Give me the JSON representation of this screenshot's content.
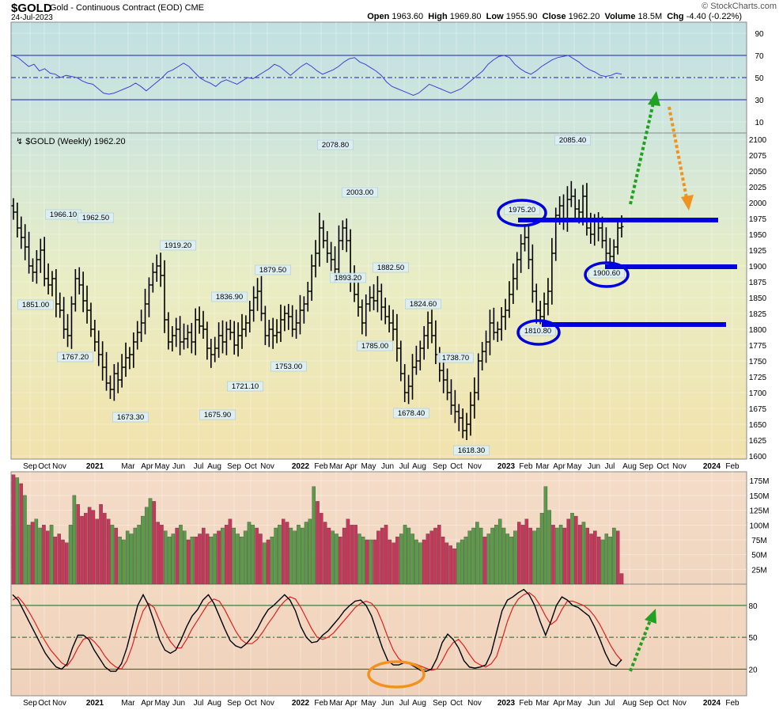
{
  "header": {
    "symbol": "$GOLD",
    "description": "Gold - Continuous Contract (EOD)",
    "exchange": "CME",
    "date": "24-Jul-2023",
    "brand": "© StockCharts.com",
    "quote": {
      "open_label": "Open",
      "open": "1963.60",
      "high_label": "High",
      "high": "1969.80",
      "low_label": "Low",
      "low": "1955.90",
      "close_label": "Close",
      "close": "1962.20",
      "volume_label": "Volume",
      "volume": "18.5M",
      "chg_label": "Chg",
      "chg": "-4.40 (-0.22%)"
    }
  },
  "colors": {
    "up_volume": "#5a9a48",
    "down_volume": "#c8365a",
    "price_bars": "#000000",
    "annotation_blue": "#0000dd",
    "arrow_green": "#22a022",
    "arrow_orange": "#f0921e",
    "rsi_line": "#4040d0",
    "stoch_k": "#000000",
    "stoch_d": "#e02020"
  },
  "chart_data": [
    {
      "type": "line",
      "panel": "rsi",
      "yticks": [
        "90",
        "70",
        "50",
        "30",
        "10"
      ],
      "ylim": [
        0,
        100
      ],
      "levels": [
        70,
        50,
        30
      ],
      "series": [
        {
          "values": [
            70,
            68,
            64,
            60,
            62,
            56,
            58,
            54,
            53,
            50,
            52,
            51,
            50,
            47,
            45,
            44,
            40,
            36,
            35,
            36,
            38,
            40,
            42,
            45,
            42,
            38,
            42,
            46,
            50,
            55,
            57,
            60,
            63,
            60,
            55,
            50,
            47,
            45,
            42,
            46,
            48,
            46,
            44,
            47,
            50,
            49,
            52,
            55,
            58,
            62,
            60,
            56,
            52,
            56,
            60,
            63,
            60,
            56,
            53,
            55,
            57,
            60,
            64,
            67,
            68,
            64,
            62,
            59,
            56,
            52,
            46,
            42,
            40,
            38,
            36,
            34,
            36,
            40,
            44,
            42,
            40,
            38,
            36,
            38,
            40,
            44,
            48,
            52,
            56,
            62,
            66,
            69,
            70,
            68,
            62,
            58,
            55,
            53,
            56,
            60,
            63,
            66,
            68,
            69,
            70,
            67,
            64,
            60,
            57,
            55,
            52,
            51,
            52,
            54,
            53
          ]
        }
      ]
    },
    {
      "type": "bar",
      "panel": "price",
      "title": "$GOLD (Weekly) 1962.20",
      "ylim": [
        1595,
        2110
      ],
      "yticks": [
        "2100",
        "2075",
        "2050",
        "2025",
        "2000",
        "1975",
        "1950",
        "1925",
        "1900",
        "1875",
        "1850",
        "1825",
        "1800",
        "1775",
        "1750",
        "1725",
        "1700",
        "1675",
        "1650",
        "1625",
        "1600"
      ],
      "x_labels": [
        "Sep",
        "Oct",
        "Nov",
        "2021",
        "Mar",
        "Apr",
        "May",
        "Jun",
        "Jul",
        "Aug",
        "Sep",
        "Oct",
        "Nov",
        "2022",
        "Feb",
        "Mar",
        "Apr",
        "May",
        "Jun",
        "Jul",
        "Aug",
        "Sep",
        "Oct",
        "Nov",
        "2023",
        "Feb",
        "Mar",
        "Apr",
        "May",
        "Jun",
        "Jul",
        "Aug",
        "Sep",
        "Oct",
        "Nov",
        "2024",
        "Feb"
      ],
      "closes": [
        1985,
        1960,
        1945,
        1930,
        1900,
        1890,
        1910,
        1925,
        1880,
        1870,
        1880,
        1840,
        1830,
        1800,
        1790,
        1840,
        1880,
        1870,
        1845,
        1830,
        1800,
        1780,
        1760,
        1740,
        1715,
        1705,
        1730,
        1720,
        1740,
        1755,
        1760,
        1780,
        1795,
        1810,
        1840,
        1870,
        1890,
        1900,
        1885,
        1815,
        1780,
        1790,
        1800,
        1780,
        1785,
        1795,
        1780,
        1815,
        1805,
        1800,
        1770,
        1760,
        1770,
        1790,
        1780,
        1800,
        1795,
        1775,
        1790,
        1800,
        1810,
        1830,
        1850,
        1860,
        1825,
        1790,
        1800,
        1790,
        1795,
        1815,
        1825,
        1820,
        1800,
        1810,
        1830,
        1840,
        1860,
        1900,
        1920,
        1960,
        1940,
        1920,
        1910,
        1895,
        1940,
        1960,
        1940,
        1880,
        1855,
        1835,
        1810,
        1840,
        1850,
        1845,
        1860,
        1835,
        1820,
        1810,
        1800,
        1770,
        1730,
        1700,
        1710,
        1740,
        1750,
        1770,
        1790,
        1810,
        1790,
        1760,
        1735,
        1720,
        1700,
        1680,
        1670,
        1660,
        1640,
        1650,
        1680,
        1700,
        1750,
        1765,
        1780,
        1810,
        1795,
        1800,
        1820,
        1830,
        1855,
        1880,
        1910,
        1935,
        1945,
        1910,
        1860,
        1830,
        1820,
        1840,
        1860,
        1920,
        1980,
        1995,
        1975,
        2005,
        2010,
        1990,
        1985,
        2010,
        1960,
        1950,
        1970,
        1960,
        1940,
        1920,
        1915,
        1930,
        1960,
        1962
      ],
      "highs_annotated": [
        "1966.10",
        "1962.50",
        "1919.20",
        "1836.90",
        "1879.50",
        "2078.80",
        "2003.00",
        "1882.50",
        "1824.60",
        "1738.70",
        "1975.20",
        "2085.40"
      ],
      "lows_annotated": [
        "1851.00",
        "1767.20",
        "1673.30",
        "1675.90",
        "1721.10",
        "1753.00",
        "1893.20",
        "1785.00",
        "1678.40",
        "1618.30",
        "1810.80",
        "1900.60"
      ],
      "annotations": {
        "resistance_levels": [
          1975,
          1900,
          1810
        ],
        "circled_values": [
          "1975.20",
          "1900.60",
          "1810.80"
        ]
      }
    },
    {
      "type": "bar",
      "panel": "volume",
      "yticks": [
        "175M",
        "150M",
        "125M",
        "100M",
        "75M",
        "50M",
        "25M"
      ],
      "ylim": [
        0,
        190000000
      ],
      "values_millions": [
        185,
        180,
        170,
        150,
        100,
        105,
        110,
        95,
        100,
        90,
        100,
        80,
        85,
        75,
        70,
        100,
        150,
        135,
        115,
        120,
        130,
        125,
        110,
        135,
        120,
        110,
        100,
        95,
        80,
        75,
        90,
        85,
        95,
        100,
        115,
        130,
        145,
        140,
        105,
        100,
        90,
        80,
        85,
        95,
        100,
        90,
        75,
        80,
        80,
        85,
        95,
        85,
        80,
        85,
        90,
        95,
        100,
        110,
        95,
        85,
        80,
        90,
        105,
        100,
        95,
        85,
        70,
        75,
        80,
        95,
        100,
        110,
        105,
        95,
        90,
        100,
        95,
        105,
        110,
        165,
        140,
        120,
        105,
        95,
        90,
        85,
        80,
        95,
        110,
        100,
        100,
        85,
        80,
        75,
        75,
        75,
        90,
        95,
        100,
        75,
        70,
        80,
        85,
        100,
        95,
        85,
        75,
        70,
        75,
        85,
        90,
        95,
        100,
        80,
        70,
        65,
        60,
        70,
        75,
        80,
        90,
        95,
        105,
        95,
        80,
        85,
        95,
        100,
        110,
        95,
        85,
        80,
        90,
        105,
        100,
        110,
        95,
        90,
        95,
        120,
        165,
        125,
        100,
        95,
        100,
        95,
        110,
        120,
        115,
        100,
        105,
        95,
        85,
        90,
        80,
        75,
        85,
        80,
        95,
        90,
        18
      ],
      "up_flags": [
        0,
        1,
        0,
        1,
        1,
        0,
        1,
        1,
        0,
        0,
        1,
        0,
        0,
        0,
        0,
        1,
        1,
        0,
        0,
        0,
        0,
        0,
        0,
        0,
        0,
        0,
        1,
        0,
        1,
        1,
        1,
        1,
        1,
        1,
        1,
        1,
        1,
        0,
        0,
        0,
        1,
        1,
        1,
        0,
        1,
        1,
        0,
        1,
        0,
        0,
        0,
        0,
        1,
        1,
        0,
        1,
        0,
        0,
        1,
        1,
        1,
        1,
        1,
        1,
        0,
        0,
        1,
        0,
        1,
        1,
        1,
        0,
        0,
        1,
        1,
        1,
        1,
        1,
        1,
        1,
        0,
        0,
        0,
        0,
        1,
        1,
        0,
        0,
        0,
        0,
        0,
        1,
        1,
        0,
        1,
        0,
        0,
        0,
        0,
        0,
        0,
        0,
        1,
        1,
        1,
        1,
        1,
        1,
        0,
        0,
        0,
        0,
        0,
        0,
        0,
        0,
        0,
        1,
        1,
        1,
        1,
        1,
        1,
        1,
        0,
        1,
        1,
        1,
        1,
        1,
        1,
        1,
        1,
        0,
        0,
        0,
        0,
        1,
        1,
        1,
        1,
        1,
        0,
        1,
        1,
        0,
        0,
        1,
        0,
        0,
        1,
        0,
        0,
        0,
        0,
        1,
        1,
        1,
        1,
        0
      ]
    },
    {
      "type": "line",
      "panel": "stochastic",
      "yticks": [
        "80",
        "50",
        "20"
      ],
      "ylim": [
        0,
        100
      ],
      "levels": [
        80,
        50,
        20
      ],
      "series": [
        {
          "values": [
            90,
            85,
            75,
            65,
            55,
            45,
            35,
            28,
            22,
            20,
            25,
            40,
            52,
            52,
            48,
            38,
            30,
            22,
            18,
            18,
            25,
            40,
            60,
            80,
            90,
            80,
            65,
            48,
            38,
            35,
            38,
            48,
            60,
            70,
            76,
            85,
            90,
            82,
            70,
            58,
            47,
            42,
            40,
            44,
            50,
            58,
            68,
            76,
            80,
            85,
            90,
            85,
            75,
            60,
            50,
            45,
            46,
            52,
            56,
            62,
            68,
            75,
            80,
            84,
            85,
            80,
            70,
            55,
            40,
            28,
            24,
            24,
            26,
            25,
            22,
            19,
            18,
            20,
            30,
            45,
            53,
            48,
            40,
            28,
            22,
            21,
            22,
            24,
            35,
            55,
            75,
            85,
            88,
            92,
            95,
            90,
            80,
            65,
            52,
            65,
            80,
            88,
            85,
            80,
            78,
            74,
            70,
            60,
            48,
            35,
            25,
            23,
            29
          ]
        },
        {
          "values": [
            85,
            88,
            82,
            74,
            65,
            55,
            46,
            38,
            32,
            26,
            23,
            30,
            40,
            48,
            50,
            46,
            40,
            32,
            26,
            22,
            20,
            28,
            42,
            60,
            75,
            82,
            78,
            66,
            55,
            46,
            40,
            40,
            48,
            58,
            66,
            74,
            82,
            86,
            84,
            76,
            66,
            56,
            48,
            44,
            44,
            48,
            55,
            63,
            70,
            78,
            84,
            88,
            86,
            78,
            68,
            58,
            50,
            48,
            50,
            54,
            60,
            66,
            72,
            78,
            82,
            84,
            82,
            76,
            64,
            50,
            38,
            30,
            26,
            25,
            25,
            23,
            21,
            19,
            20,
            28,
            38,
            45,
            48,
            42,
            34,
            27,
            24,
            22,
            25,
            32,
            48,
            65,
            78,
            86,
            90,
            92,
            88,
            80,
            70,
            62,
            66,
            76,
            84,
            84,
            82,
            80,
            76,
            70,
            62,
            52,
            42,
            34,
            28
          ]
        }
      ]
    }
  ],
  "price_labels": {
    "h1": "1966.10",
    "h2": "1962.50",
    "l1": "1851.00",
    "l2": "1767.20",
    "h3": "1919.20",
    "l3": "1673.30",
    "h4": "1836.90",
    "l4": "1675.90",
    "l5": "1721.10",
    "h5": "1879.50",
    "l6": "1753.00",
    "h6": "2078.80",
    "h7": "2003.00",
    "l7": "1893.20",
    "h8": "1882.50",
    "l8": "1785.00",
    "h9": "1824.60",
    "l9": "1678.40",
    "h10": "1738.70",
    "l10": "1618.30",
    "h11": "1975.20",
    "l11": "1810.80",
    "h12": "2085.40",
    "l12": "1900.60"
  }
}
